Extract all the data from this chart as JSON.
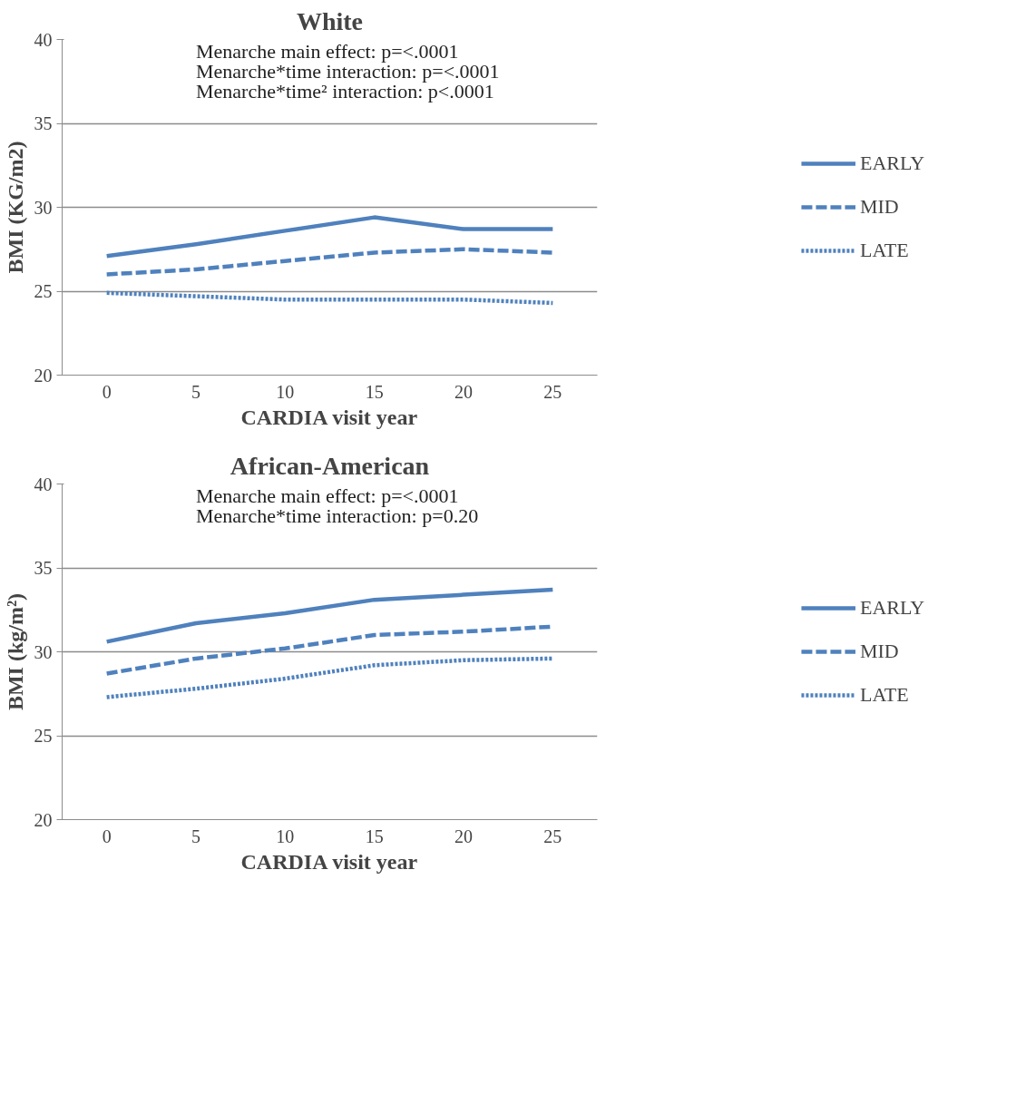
{
  "chart_data": [
    {
      "type": "line",
      "title": "White",
      "xlabel": "CARDIA visit year",
      "ylabel": "BMI (KG/m2)",
      "categories": [
        "0",
        "5",
        "10",
        "15",
        "20",
        "25"
      ],
      "ylim": [
        20,
        40
      ],
      "yticks": [
        20,
        25,
        30,
        35,
        40
      ],
      "grid": "y",
      "legend": "right",
      "marker": "none",
      "annotations": [
        "Menarche main effect: p=<.0001",
        "Menarche*time interaction:  p=<.0001",
        "Menarche*time² interaction: p<.0001"
      ],
      "series": [
        {
          "name": "EARLY",
          "color": "#4f81bd",
          "line_style": "solid",
          "values": [
            27.1,
            27.8,
            28.6,
            29.4,
            28.7,
            28.7
          ]
        },
        {
          "name": "MID",
          "color": "#4f81bd",
          "line_style": "dashed",
          "values": [
            26.0,
            26.3,
            26.8,
            27.3,
            27.5,
            27.3
          ]
        },
        {
          "name": "LATE",
          "color": "#4f81bd",
          "line_style": "dotted",
          "values": [
            24.9,
            24.7,
            24.5,
            24.5,
            24.5,
            24.3
          ]
        }
      ]
    },
    {
      "type": "line",
      "title": "African-American",
      "xlabel": "CARDIA visit year",
      "ylabel": "BMI (kg/m²)",
      "categories": [
        "0",
        "5",
        "10",
        "15",
        "20",
        "25"
      ],
      "ylim": [
        20,
        40
      ],
      "yticks": [
        20,
        25,
        30,
        35,
        40
      ],
      "grid": "y",
      "legend": "right",
      "marker": "none",
      "annotations": [
        "Menarche main effect: p=<.0001",
        "Menarche*time interaction:  p=0.20"
      ],
      "series": [
        {
          "name": "EARLY",
          "color": "#4f81bd",
          "line_style": "solid",
          "values": [
            30.6,
            31.7,
            32.3,
            33.1,
            33.4,
            33.7
          ]
        },
        {
          "name": "MID",
          "color": "#4f81bd",
          "line_style": "dashed",
          "values": [
            28.7,
            29.6,
            30.2,
            31.0,
            31.2,
            31.5
          ]
        },
        {
          "name": "LATE",
          "color": "#4f81bd",
          "line_style": "dotted",
          "values": [
            27.3,
            27.8,
            28.4,
            29.2,
            29.5,
            29.6
          ]
        }
      ]
    }
  ]
}
